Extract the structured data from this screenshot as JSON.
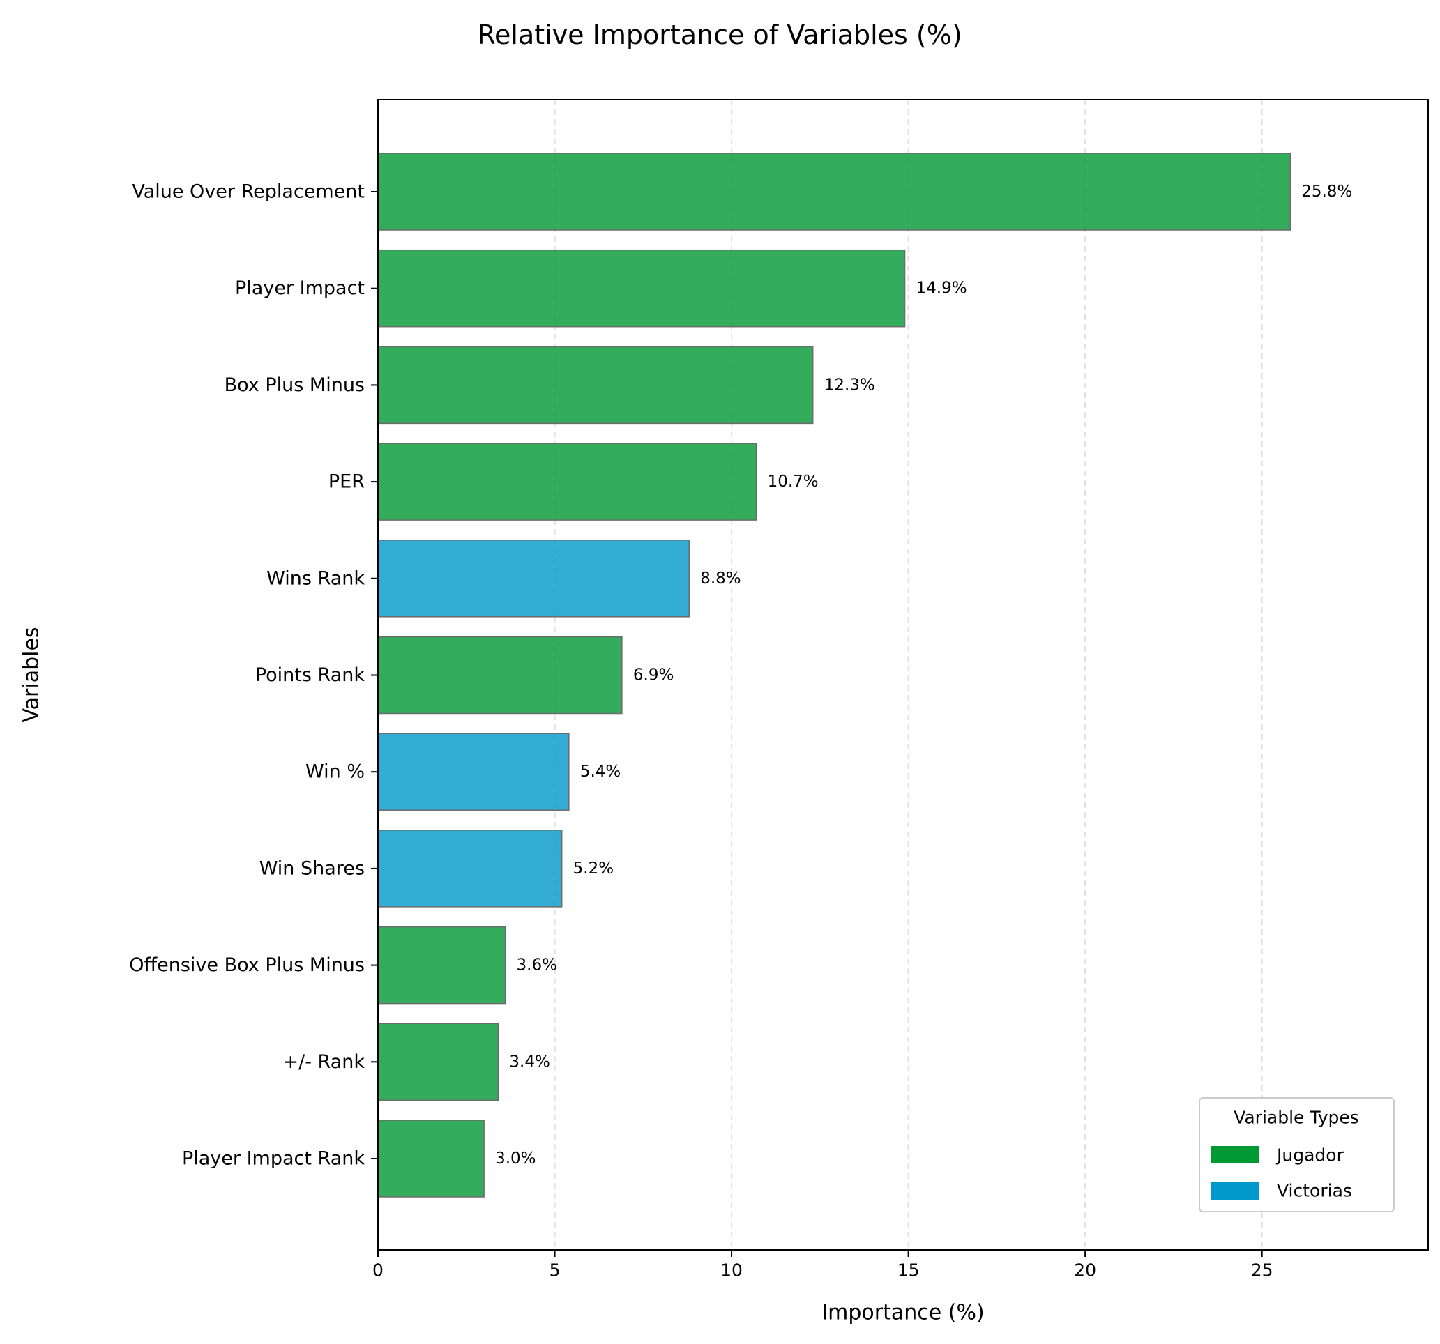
{
  "chart_data": {
    "type": "bar",
    "orientation": "horizontal",
    "title": "Relative Importance of Variables (%)",
    "xlabel": "Importance (%)",
    "ylabel": "Variables",
    "xlim": [
      0,
      29.7
    ],
    "xticks": [
      0,
      5,
      10,
      15,
      20,
      25
    ],
    "grid": "x-dashed",
    "legend_placement": "bottom-right",
    "categories": [
      "Value Over Replacement",
      "Player Impact",
      "Box Plus Minus",
      "PER",
      "Wins Rank",
      "Points Rank",
      "Win %",
      "Win Shares",
      "Offensive Box Plus Minus",
      "+/- Rank",
      "Player Impact Rank"
    ],
    "values": [
      25.8,
      14.9,
      12.3,
      10.7,
      8.8,
      6.9,
      5.4,
      5.2,
      3.6,
      3.4,
      3.0
    ],
    "value_labels": [
      "25.8%",
      "14.9%",
      "12.3%",
      "10.7%",
      "8.8%",
      "6.9%",
      "5.4%",
      "5.2%",
      "3.6%",
      "3.4%",
      "3.0%"
    ],
    "types": [
      "Jugador",
      "Jugador",
      "Jugador",
      "Jugador",
      "Victorias",
      "Jugador",
      "Victorias",
      "Victorias",
      "Jugador",
      "Jugador",
      "Jugador"
    ],
    "legend": {
      "title": "Variable Types",
      "entries": [
        {
          "name": "Jugador",
          "color": "#009933"
        },
        {
          "name": "Victorias",
          "color": "#0099cc"
        }
      ]
    },
    "colors": {
      "Jugador": "#009933",
      "Victorias": "#0099cc",
      "bar_edge": "#6b6b6b"
    }
  }
}
